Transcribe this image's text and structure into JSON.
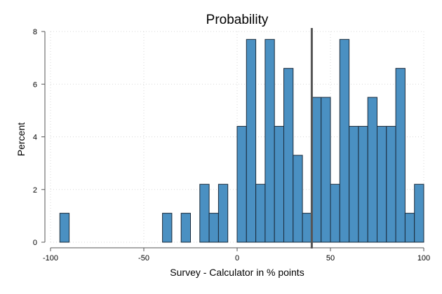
{
  "chart_data": {
    "type": "bar",
    "title": "Probability",
    "xlabel": "Survey -  Calculator in % points",
    "ylabel": "Percent",
    "xlim": [
      -100,
      100
    ],
    "ylim": [
      0,
      8
    ],
    "xticks": [
      -100,
      -50,
      0,
      50,
      100
    ],
    "yticks": [
      0,
      2,
      4,
      6,
      8
    ],
    "bin_width": 5,
    "bar_color": "#4a90c2",
    "grid": true,
    "reference_line_x": 40,
    "bins": [
      {
        "x0": -95,
        "x1": -90,
        "percent": 1.1
      },
      {
        "x0": -40,
        "x1": -35,
        "percent": 1.1
      },
      {
        "x0": -30,
        "x1": -25,
        "percent": 1.1
      },
      {
        "x0": -20,
        "x1": -15,
        "percent": 2.2
      },
      {
        "x0": -15,
        "x1": -10,
        "percent": 1.1
      },
      {
        "x0": -10,
        "x1": -5,
        "percent": 2.2
      },
      {
        "x0": 0,
        "x1": 5,
        "percent": 4.4
      },
      {
        "x0": 5,
        "x1": 10,
        "percent": 7.7
      },
      {
        "x0": 10,
        "x1": 15,
        "percent": 2.2
      },
      {
        "x0": 15,
        "x1": 20,
        "percent": 7.7
      },
      {
        "x0": 20,
        "x1": 25,
        "percent": 4.4
      },
      {
        "x0": 25,
        "x1": 30,
        "percent": 6.6
      },
      {
        "x0": 30,
        "x1": 35,
        "percent": 3.3
      },
      {
        "x0": 35,
        "x1": 40,
        "percent": 1.1
      },
      {
        "x0": 40,
        "x1": 45,
        "percent": 5.5
      },
      {
        "x0": 45,
        "x1": 50,
        "percent": 5.5
      },
      {
        "x0": 50,
        "x1": 55,
        "percent": 2.2
      },
      {
        "x0": 55,
        "x1": 60,
        "percent": 7.7
      },
      {
        "x0": 60,
        "x1": 65,
        "percent": 4.4
      },
      {
        "x0": 65,
        "x1": 70,
        "percent": 4.4
      },
      {
        "x0": 70,
        "x1": 75,
        "percent": 5.5
      },
      {
        "x0": 75,
        "x1": 80,
        "percent": 4.4
      },
      {
        "x0": 80,
        "x1": 85,
        "percent": 4.4
      },
      {
        "x0": 85,
        "x1": 90,
        "percent": 6.6
      },
      {
        "x0": 90,
        "x1": 95,
        "percent": 1.1
      },
      {
        "x0": 95,
        "x1": 100,
        "percent": 2.2
      }
    ]
  }
}
